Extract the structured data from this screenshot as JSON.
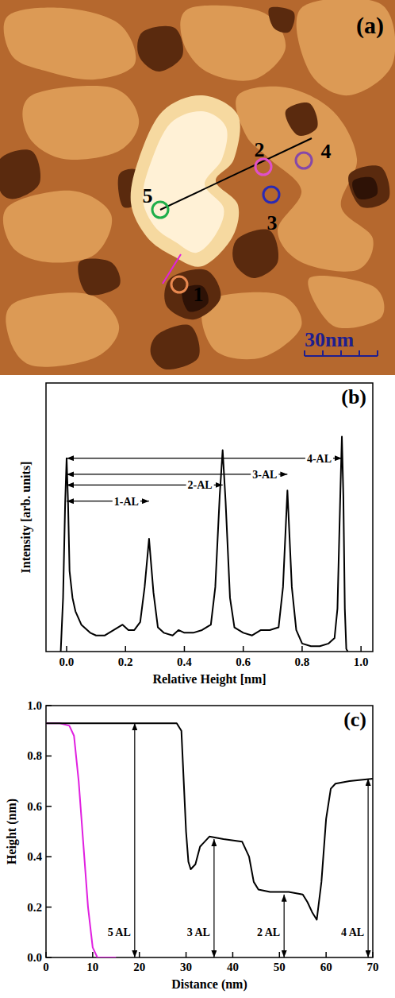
{
  "chart_data": [
    {
      "type": "image",
      "title": "(a)",
      "labels": [
        {
          "text": "1",
          "color": "#e8884f"
        },
        {
          "text": "2",
          "color": "#e050c8"
        },
        {
          "text": "3",
          "color": "#2a2ab4"
        },
        {
          "text": "4",
          "color": "#8648a8"
        },
        {
          "text": "5",
          "color": "#1fae4a"
        }
      ],
      "scale_bar": "30nm"
    },
    {
      "type": "line",
      "title": "(b)",
      "x_label": "Relative Height [nm]",
      "y_label": "Intensity [arb. units]",
      "xlim": [
        -0.07,
        1.04
      ],
      "ylim": [
        0,
        100
      ],
      "xticks": [
        {
          "value": 0,
          "label": "0.0"
        },
        0.2,
        0.4,
        0.6,
        0.8,
        {
          "value": 1,
          "label": "1.0"
        }
      ],
      "tick_labels": "x",
      "series": [
        {
          "color": "#000000",
          "x": [
            -0.02,
            -0.012,
            -0.005,
            0,
            0.005,
            0.01,
            0.02,
            0.03,
            0.05,
            0.08,
            0.1,
            0.13,
            0.16,
            0.19,
            0.21,
            0.23,
            0.25,
            0.265,
            0.28,
            0.295,
            0.31,
            0.33,
            0.36,
            0.38,
            0.4,
            0.43,
            0.46,
            0.49,
            0.505,
            0.52,
            0.53,
            0.54,
            0.555,
            0.57,
            0.6,
            0.63,
            0.66,
            0.69,
            0.72,
            0.735,
            0.75,
            0.765,
            0.78,
            0.8,
            0.83,
            0.86,
            0.89,
            0.91,
            0.92,
            0.93,
            0.935,
            0.94,
            0.945,
            0.95,
            0.955
          ],
          "values": [
            0,
            20,
            55,
            72,
            55,
            30,
            20,
            15,
            10,
            7,
            6,
            6,
            8,
            10,
            8,
            8,
            11,
            24,
            42,
            22,
            9,
            7,
            6,
            8,
            7,
            7,
            8,
            10,
            24,
            58,
            75,
            56,
            20,
            9,
            7,
            6,
            8,
            8,
            9,
            24,
            60,
            24,
            8,
            3,
            2,
            2,
            3,
            5,
            16,
            60,
            80,
            58,
            16,
            1,
            0
          ]
        }
      ],
      "annotations": [
        {
          "text": "1-AL",
          "from": 0,
          "to": 0.28,
          "y": 56
        },
        {
          "text": "2-AL",
          "from": 0,
          "to": 0.53,
          "y": 62
        },
        {
          "text": "3-AL",
          "from": 0,
          "to": 0.75,
          "y": 66
        },
        {
          "text": "4-AL",
          "from": 0,
          "to": 0.935,
          "y": 72
        }
      ]
    },
    {
      "type": "line",
      "title": "(c)",
      "x_label": "Distance (nm)",
      "y_label": "Height (nm)",
      "xlim": [
        0,
        70
      ],
      "ylim": [
        0,
        1
      ],
      "xticks": [
        0,
        10,
        20,
        30,
        40,
        50,
        60,
        70
      ],
      "yticks": [
        {
          "value": 0,
          "label": "0.0"
        },
        0.2,
        0.4,
        0.6,
        0.8,
        {
          "value": 1,
          "label": "1.0"
        }
      ],
      "series": [
        {
          "color": "#e020e0",
          "x": [
            0,
            3,
            5,
            6,
            7,
            8,
            9,
            10,
            11,
            15
          ],
          "values": [
            0.93,
            0.93,
            0.92,
            0.88,
            0.7,
            0.45,
            0.2,
            0.04,
            0,
            0
          ]
        },
        {
          "color": "#000000",
          "x": [
            0,
            10,
            20,
            28,
            29,
            29.5,
            30,
            30.5,
            31,
            32,
            33,
            35,
            38,
            42,
            43.5,
            44.5,
            45.5,
            48,
            52,
            55,
            56,
            57,
            58,
            59,
            60,
            61,
            62,
            65,
            70
          ],
          "values": [
            0.93,
            0.93,
            0.93,
            0.93,
            0.9,
            0.7,
            0.5,
            0.38,
            0.35,
            0.37,
            0.44,
            0.48,
            0.47,
            0.46,
            0.4,
            0.3,
            0.27,
            0.26,
            0.26,
            0.25,
            0.22,
            0.18,
            0.15,
            0.3,
            0.55,
            0.67,
            0.69,
            0.7,
            0.71
          ]
        }
      ],
      "annotations": [
        {
          "text": "5 AL",
          "x": 19,
          "y": 0.93
        },
        {
          "text": "3 AL",
          "x": 36,
          "y": 0.47
        },
        {
          "text": "2 AL",
          "x": 51,
          "y": 0.25
        },
        {
          "text": "4 AL",
          "x": 69,
          "y": 0.71
        }
      ]
    }
  ]
}
